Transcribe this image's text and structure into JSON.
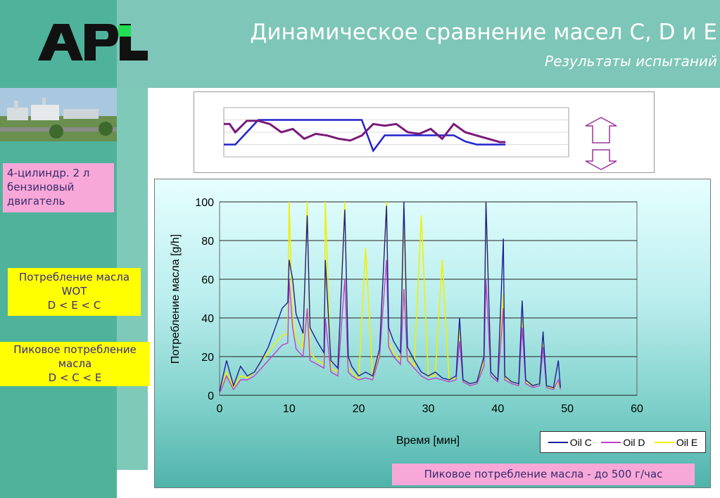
{
  "header": {
    "logo_text": "APL",
    "title": "Динамическое сравнение масел C, D и E",
    "subtitle": "Результаты испытаний"
  },
  "sidebar": {
    "engine_label": "4-цилиндр. 2 л\nбензиновый\nдвигатель",
    "wot_box": [
      "Потребление масла",
      "WOT",
      "D < E < C"
    ],
    "peak_box": [
      "Пиковое потребление",
      "масла",
      "D < C < E"
    ]
  },
  "note": "Пиковое потребление масла - до 500 г/час",
  "colors": {
    "oil_c": "#1f1f9a",
    "oil_d": "#c040c8",
    "oil_e": "#f0f000",
    "accent_green": "#4fb39b",
    "pink": "#f7a8d8",
    "yellow": "#ffff00"
  },
  "chart_data": [
    {
      "type": "line",
      "title": "",
      "xlabel": "Время [мин]",
      "ylabel": "Потребление масла [g/h]",
      "xlim": [
        0,
        60
      ],
      "ylim": [
        0,
        100
      ],
      "xticks": [
        0,
        10,
        20,
        30,
        40,
        50,
        60
      ],
      "yticks": [
        0,
        20,
        40,
        60,
        80,
        100
      ],
      "grid": "horizontal",
      "legend": "bottom-right",
      "series": [
        {
          "name": "Oil C",
          "x": [
            0,
            1,
            2,
            3,
            4,
            5,
            6,
            7,
            8,
            9,
            9.8,
            10,
            10.5,
            11,
            12,
            12.6,
            13,
            14,
            15,
            15.2,
            16,
            17,
            18,
            18.5,
            19,
            20,
            21,
            22,
            23,
            24,
            24.3,
            25,
            26,
            26.5,
            27,
            28,
            29,
            30,
            31,
            32,
            33,
            34,
            34.5,
            35,
            36,
            37,
            38,
            38.3,
            39,
            40,
            40.8,
            41,
            42,
            43,
            43.5,
            44,
            45,
            46,
            46.5,
            47,
            48,
            48.7,
            49
          ],
          "y": [
            2,
            18,
            5,
            15,
            10,
            12,
            18,
            25,
            35,
            45,
            48,
            70,
            60,
            42,
            32,
            93,
            35,
            28,
            22,
            70,
            18,
            14,
            96,
            20,
            15,
            10,
            12,
            10,
            24,
            98,
            35,
            28,
            22,
            100,
            25,
            18,
            12,
            10,
            12,
            9,
            8,
            10,
            40,
            8,
            6,
            7,
            20,
            100,
            12,
            8,
            81,
            10,
            7,
            6,
            49,
            8,
            5,
            6,
            33,
            5,
            4,
            18,
            4
          ]
        },
        {
          "name": "Oil D",
          "x": [
            0,
            1,
            2,
            3,
            4,
            5,
            6,
            7,
            8,
            9,
            9.8,
            10,
            10.5,
            11,
            12,
            12.6,
            13,
            14,
            15,
            15.2,
            16,
            17,
            18,
            18.5,
            19,
            20,
            21,
            22,
            23,
            24,
            24.3,
            25,
            26,
            26.5,
            27,
            28,
            29,
            30,
            31,
            32,
            33,
            34,
            34.5,
            35,
            36,
            37,
            38,
            38.3,
            39,
            40,
            40.8,
            41,
            42,
            43,
            43.5,
            44,
            45,
            46,
            46.5,
            47,
            48,
            48.7,
            49
          ],
          "y": [
            1,
            10,
            3,
            8,
            8,
            10,
            14,
            18,
            22,
            26,
            27,
            60,
            35,
            24,
            20,
            45,
            18,
            16,
            14,
            40,
            12,
            10,
            60,
            12,
            10,
            8,
            9,
            8,
            20,
            70,
            25,
            20,
            16,
            55,
            18,
            14,
            10,
            8,
            9,
            8,
            7,
            8,
            28,
            7,
            5,
            6,
            15,
            60,
            10,
            7,
            45,
            8,
            6,
            5,
            35,
            6,
            4,
            5,
            25,
            4,
            3,
            8,
            3
          ]
        },
        {
          "name": "Oil E",
          "x": [
            0,
            1,
            2,
            3,
            4,
            5,
            6,
            7,
            8,
            9,
            9.8,
            10,
            10.5,
            11,
            12,
            12.6,
            13,
            14,
            15,
            15.2,
            16,
            17,
            18,
            18.5,
            19,
            20,
            21,
            22,
            23,
            24,
            24.3,
            25,
            26,
            26.5,
            27,
            28,
            29,
            30,
            31,
            32,
            33,
            34,
            34.5,
            35,
            36,
            37,
            38,
            38.3,
            39,
            40,
            40.8,
            41,
            42,
            43,
            43.5,
            44,
            45,
            46,
            46.5,
            47,
            48,
            48.7,
            49
          ],
          "y": [
            1,
            12,
            4,
            10,
            9,
            12,
            18,
            22,
            27,
            31,
            32,
            100,
            40,
            30,
            24,
            100,
            22,
            18,
            16,
            100,
            14,
            12,
            100,
            14,
            12,
            8,
            76,
            9,
            22,
            100,
            28,
            22,
            18,
            92,
            20,
            15,
            93,
            10,
            10,
            70,
            8,
            9,
            35,
            8,
            6,
            7,
            18,
            100,
            12,
            8,
            53,
            9,
            7,
            6,
            40,
            7,
            5,
            6,
            27,
            5,
            3,
            7,
            3
          ]
        }
      ]
    },
    {
      "type": "line",
      "title": "",
      "xlabel": "",
      "ylabel": "",
      "xlim": [
        0,
        60
      ],
      "ylim": [
        -1000,
        7000
      ],
      "y2lim": [
        -50,
        250
      ],
      "legend": "none",
      "series": [
        {
          "x": [
            0,
            1,
            2,
            4,
            6,
            8,
            10,
            12,
            14,
            16,
            18,
            20,
            24,
            26,
            28,
            30,
            32,
            34,
            36,
            38,
            40,
            42,
            44,
            46,
            48,
            49
          ],
          "y": [
            1000,
            1000,
            1000,
            3000,
            5000,
            5000,
            5000,
            5000,
            5000,
            5000,
            5000,
            5000,
            5000,
            0,
            2500,
            2500,
            2500,
            2500,
            2500,
            2500,
            2500,
            1500,
            1000,
            1000,
            1000,
            1000
          ]
        },
        {
          "x": [
            0,
            1,
            2,
            4,
            6,
            8,
            10,
            12,
            14,
            16,
            18,
            20,
            22,
            24,
            26,
            28,
            30,
            32,
            34,
            36,
            38,
            40,
            42,
            44,
            46,
            48,
            49
          ],
          "y": [
            150,
            150,
            100,
            170,
            170,
            150,
            100,
            120,
            60,
            90,
            80,
            60,
            50,
            80,
            150,
            140,
            150,
            100,
            90,
            120,
            60,
            150,
            100,
            80,
            60,
            40,
            40
          ]
        }
      ]
    }
  ]
}
